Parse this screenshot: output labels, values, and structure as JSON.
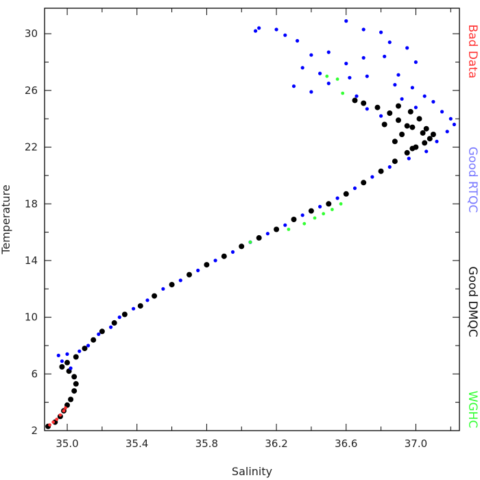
{
  "chart_data": {
    "type": "scatter",
    "title": "",
    "xlabel": "Salinity",
    "ylabel": "Temperature",
    "xlim": [
      34.87,
      37.25
    ],
    "ylim": [
      2.0,
      31.8
    ],
    "x_ticks": [
      35.0,
      35.4,
      35.8,
      36.2,
      36.6,
      37.0
    ],
    "x_tick_labels": [
      "35.0",
      "35.4",
      "35.8",
      "36.2",
      "36.6",
      "37.0"
    ],
    "y_ticks": [
      2,
      6,
      10,
      14,
      18,
      22,
      26,
      30
    ],
    "y_tick_labels": [
      "2",
      "6",
      "10",
      "14",
      "18",
      "22",
      "26",
      "30"
    ],
    "grid": false,
    "legend_position": "right, rotated vertical text",
    "series": [
      {
        "name": "Good DMQC",
        "color": "#000000",
        "points": [
          [
            34.89,
            2.3
          ],
          [
            34.93,
            2.6
          ],
          [
            34.96,
            3.0
          ],
          [
            34.98,
            3.4
          ],
          [
            35.0,
            3.8
          ],
          [
            35.02,
            4.2
          ],
          [
            35.04,
            4.8
          ],
          [
            35.05,
            5.3
          ],
          [
            35.04,
            5.8
          ],
          [
            35.01,
            6.2
          ],
          [
            34.97,
            6.5
          ],
          [
            35.0,
            6.8
          ],
          [
            35.05,
            7.2
          ],
          [
            35.1,
            7.8
          ],
          [
            35.15,
            8.4
          ],
          [
            35.2,
            9.0
          ],
          [
            35.27,
            9.6
          ],
          [
            35.33,
            10.2
          ],
          [
            35.42,
            10.8
          ],
          [
            35.5,
            11.5
          ],
          [
            35.6,
            12.3
          ],
          [
            35.7,
            13.0
          ],
          [
            35.8,
            13.7
          ],
          [
            35.9,
            14.3
          ],
          [
            36.0,
            15.0
          ],
          [
            36.1,
            15.6
          ],
          [
            36.2,
            16.2
          ],
          [
            36.3,
            16.9
          ],
          [
            36.4,
            17.5
          ],
          [
            36.5,
            18.0
          ],
          [
            36.6,
            18.7
          ],
          [
            36.7,
            19.5
          ],
          [
            36.8,
            20.3
          ],
          [
            36.88,
            21.0
          ],
          [
            36.95,
            21.6
          ],
          [
            37.0,
            22.0
          ],
          [
            37.05,
            22.3
          ],
          [
            37.08,
            22.6
          ],
          [
            37.04,
            23.0
          ],
          [
            36.98,
            23.4
          ],
          [
            36.9,
            23.9
          ],
          [
            36.85,
            24.4
          ],
          [
            36.78,
            24.8
          ],
          [
            36.7,
            25.1
          ],
          [
            36.65,
            25.3
          ],
          [
            36.92,
            22.9
          ],
          [
            36.95,
            23.5
          ],
          [
            37.02,
            24.0
          ],
          [
            36.97,
            24.5
          ],
          [
            36.88,
            22.4
          ],
          [
            37.1,
            22.9
          ],
          [
            36.98,
            21.9
          ],
          [
            36.9,
            24.9
          ],
          [
            36.82,
            23.6
          ],
          [
            37.06,
            23.3
          ]
        ]
      },
      {
        "name": "Good RTQC",
        "color": "#0000ff",
        "points": [
          [
            35.0,
            7.4
          ],
          [
            34.97,
            6.9
          ],
          [
            34.95,
            7.3
          ],
          [
            35.02,
            6.4
          ],
          [
            35.07,
            7.6
          ],
          [
            35.12,
            8.0
          ],
          [
            35.18,
            8.8
          ],
          [
            35.25,
            9.3
          ],
          [
            35.3,
            10.0
          ],
          [
            35.38,
            10.6
          ],
          [
            35.46,
            11.2
          ],
          [
            35.55,
            12.0
          ],
          [
            35.65,
            12.6
          ],
          [
            35.75,
            13.3
          ],
          [
            35.85,
            14.0
          ],
          [
            35.95,
            14.6
          ],
          [
            36.05,
            15.3
          ],
          [
            36.15,
            15.9
          ],
          [
            36.25,
            16.5
          ],
          [
            36.35,
            17.2
          ],
          [
            36.45,
            17.8
          ],
          [
            36.55,
            18.4
          ],
          [
            36.65,
            19.1
          ],
          [
            36.75,
            19.9
          ],
          [
            36.85,
            20.6
          ],
          [
            36.1,
            30.4
          ],
          [
            36.08,
            30.2
          ],
          [
            36.2,
            30.3
          ],
          [
            36.25,
            29.9
          ],
          [
            36.32,
            29.5
          ],
          [
            36.4,
            28.5
          ],
          [
            36.5,
            28.7
          ],
          [
            36.6,
            30.9
          ],
          [
            36.7,
            30.3
          ],
          [
            36.8,
            30.1
          ],
          [
            36.85,
            29.4
          ],
          [
            36.95,
            29.0
          ],
          [
            36.35,
            27.6
          ],
          [
            36.45,
            27.2
          ],
          [
            36.6,
            27.9
          ],
          [
            36.7,
            28.3
          ],
          [
            36.82,
            28.4
          ],
          [
            36.9,
            27.1
          ],
          [
            37.0,
            28.0
          ],
          [
            36.3,
            26.3
          ],
          [
            36.4,
            25.9
          ],
          [
            36.5,
            26.5
          ],
          [
            36.62,
            26.9
          ],
          [
            36.72,
            27.0
          ],
          [
            36.88,
            26.4
          ],
          [
            36.98,
            26.2
          ],
          [
            37.05,
            25.6
          ],
          [
            37.1,
            25.2
          ],
          [
            37.15,
            24.5
          ],
          [
            37.2,
            24.0
          ],
          [
            37.22,
            23.6
          ],
          [
            37.18,
            23.1
          ],
          [
            37.12,
            22.4
          ],
          [
            37.06,
            21.7
          ],
          [
            36.96,
            21.2
          ],
          [
            36.8,
            24.2
          ],
          [
            36.72,
            24.7
          ],
          [
            36.66,
            25.6
          ],
          [
            37.0,
            24.8
          ],
          [
            36.92,
            25.4
          ]
        ]
      },
      {
        "name": "WGHC",
        "color": "#33ff33",
        "points": [
          [
            36.49,
            27.0
          ],
          [
            36.55,
            26.8
          ],
          [
            36.58,
            25.8
          ],
          [
            36.27,
            16.2
          ],
          [
            36.36,
            16.6
          ],
          [
            36.42,
            17.0
          ],
          [
            36.47,
            17.3
          ],
          [
            36.52,
            17.6
          ],
          [
            36.57,
            18.0
          ],
          [
            36.05,
            15.3
          ]
        ]
      },
      {
        "name": "Bad Data",
        "color": "#ff3333",
        "points": [
          [
            34.9,
            2.4
          ],
          [
            34.92,
            2.6
          ],
          [
            34.94,
            2.8
          ],
          [
            34.96,
            3.1
          ],
          [
            34.98,
            3.4
          ],
          [
            34.99,
            3.6
          ]
        ]
      }
    ]
  },
  "legend": [
    {
      "label": "Bad Data",
      "color": "#ff3333"
    },
    {
      "label": "Good RTQC",
      "color": "#7777ff"
    },
    {
      "label": "Good DMQC",
      "color": "#111111"
    },
    {
      "label": "WGHC",
      "color": "#33ff33"
    }
  ]
}
